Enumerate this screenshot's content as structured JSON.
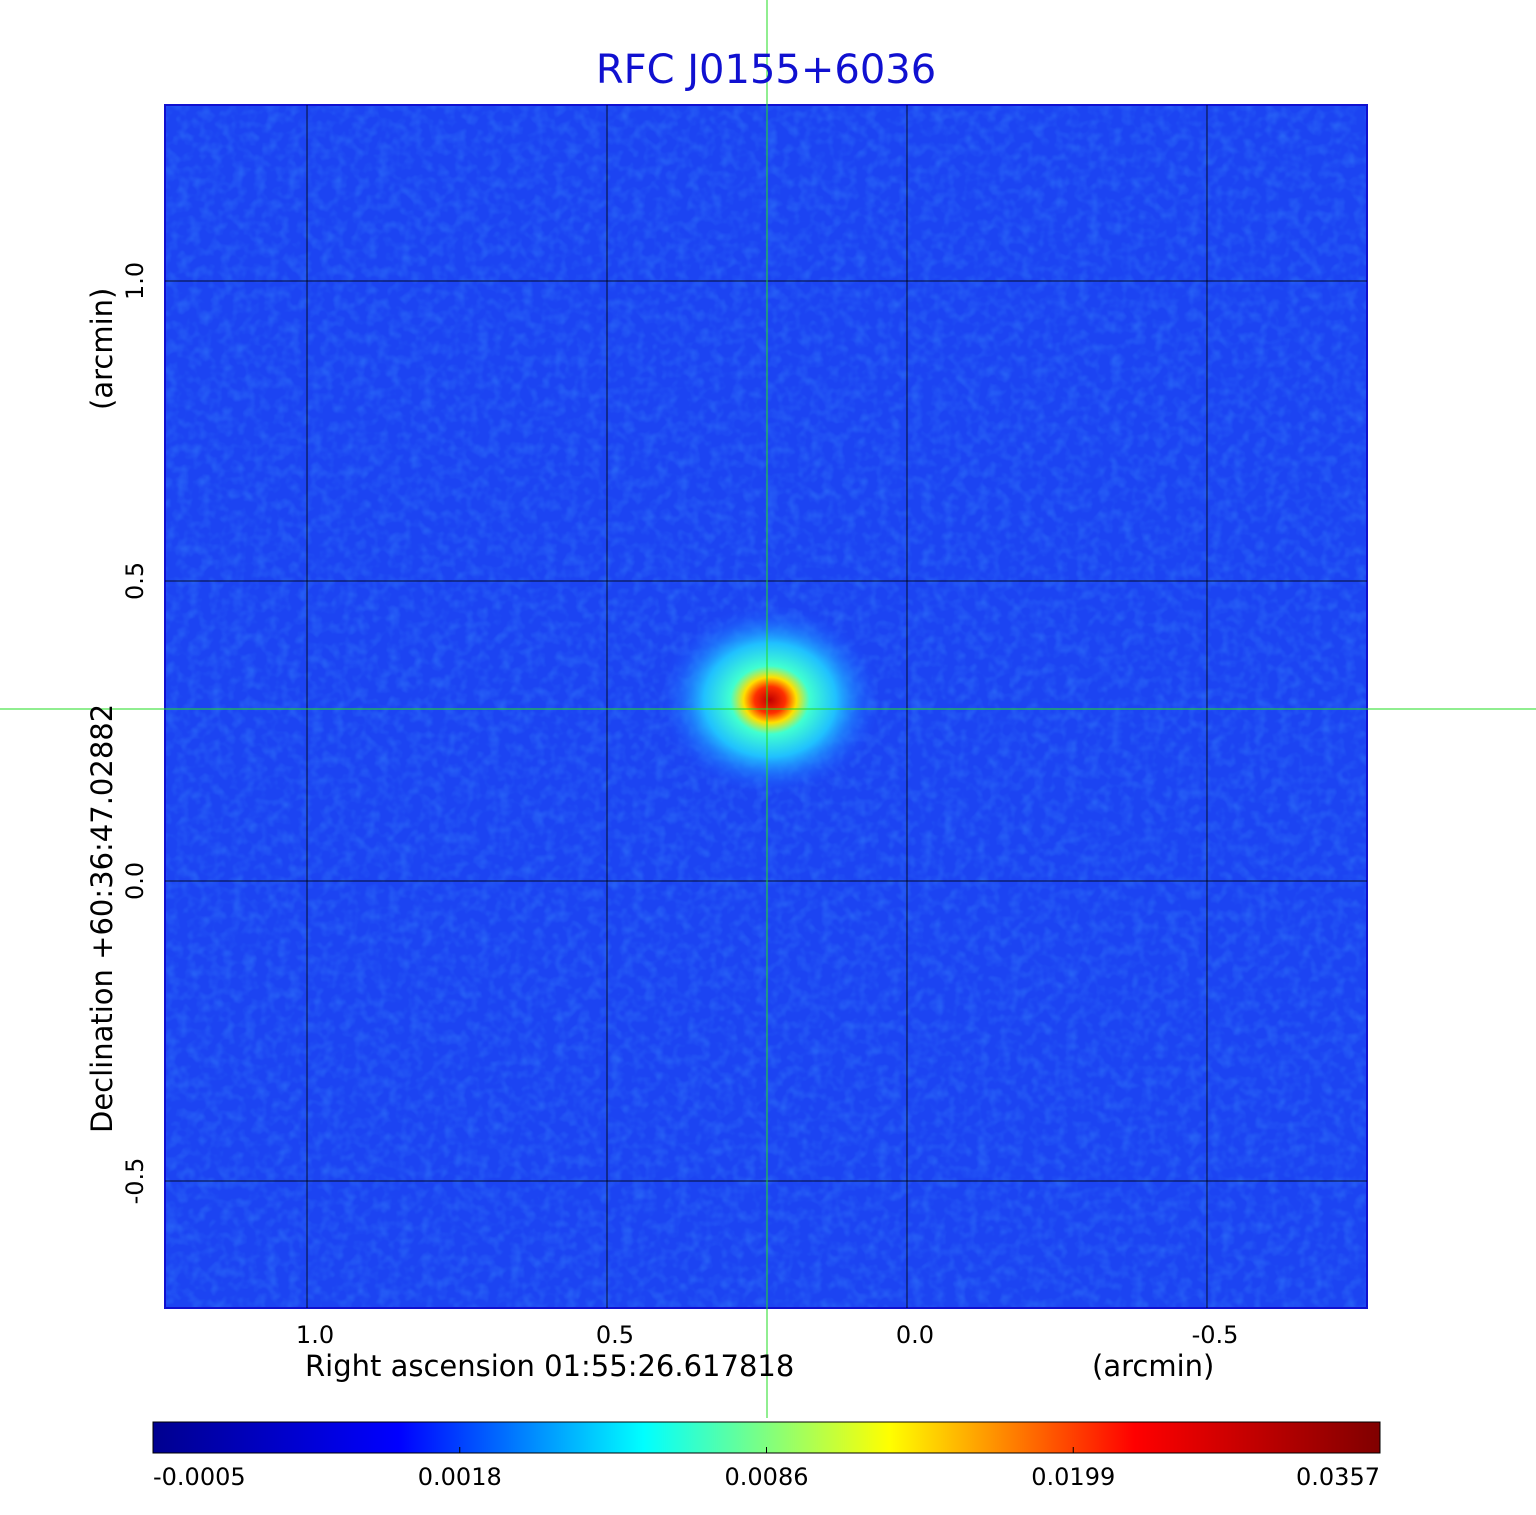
{
  "chart_data": {
    "type": "image",
    "title": "RFC J0155+6036",
    "x_label": "Right ascension  01:55:26.617818",
    "x_unit": "(arcmin)",
    "y_label": "Declination  +60:36:47.02882",
    "y_unit": "(arcmin)",
    "xlim": [
      1.2367,
      -0.7667
    ],
    "ylim": [
      -0.7117,
      1.2933
    ],
    "xticks": [
      {
        "value": 1,
        "label": "1.0"
      },
      0.5,
      {
        "value": 0,
        "label": "0.0"
      },
      -0.5
    ],
    "yticks": [
      {
        "value": 1,
        "label": "1.0"
      },
      0.5,
      {
        "value": 0,
        "label": "0.0"
      },
      -0.5
    ],
    "grid": true,
    "colorbar": {
      "ticks": [
        -0.0005,
        0.0018,
        0.0086,
        0.0199,
        0.0357
      ],
      "colormap": [
        "#00008f",
        "#0000ff",
        "#00ffff",
        "#ffff00",
        "#ff0000",
        "#800000"
      ]
    }
  }
}
